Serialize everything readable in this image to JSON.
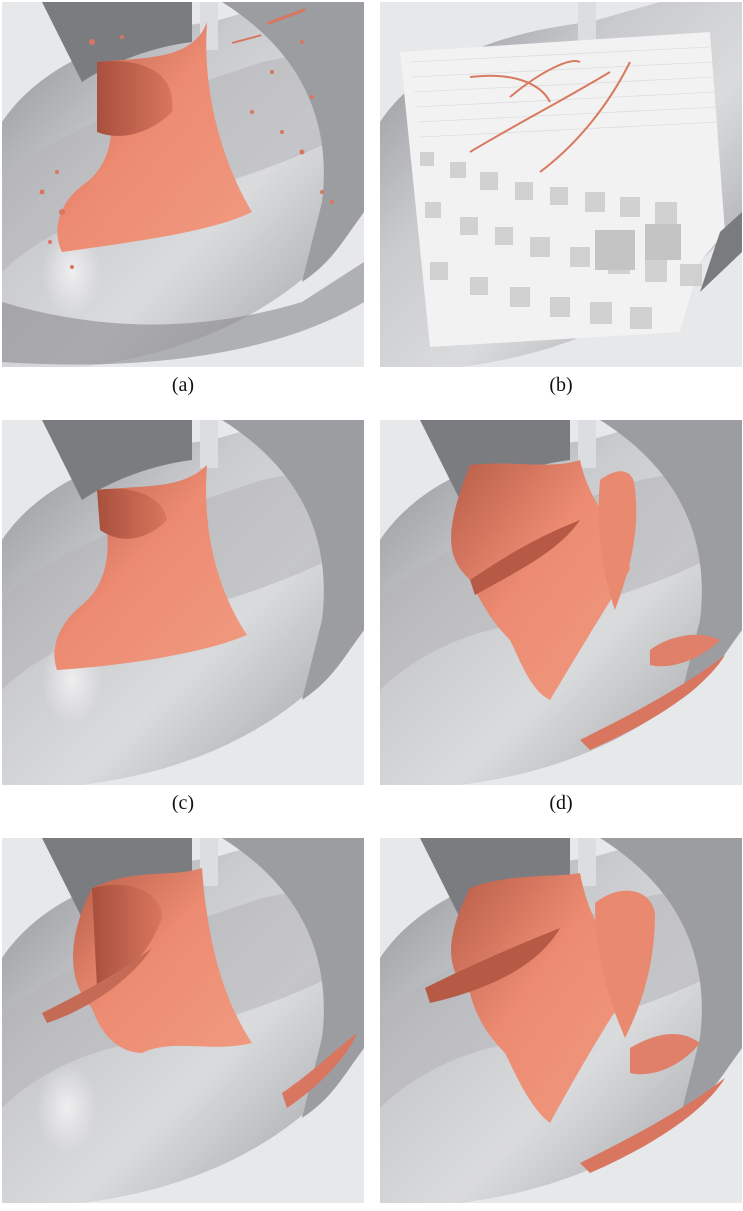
{
  "figure": {
    "captions": {
      "a": "(a)",
      "b": "(b)",
      "c": "(c)",
      "d": "(d)"
    },
    "colors": {
      "background": "#e7e8ea",
      "pipe_light": "#c8c9cc",
      "pipe_dark": "#6f7074",
      "isosurface": "#e8806a",
      "isosurface_shade": "#b65a45",
      "voxel_face": "#f4f4f4",
      "voxel_shadow": "#bfbfbf"
    },
    "panels": [
      {
        "id": "a",
        "content": "isosurface-scattered-fragments"
      },
      {
        "id": "b",
        "content": "octree-voxel-grid"
      },
      {
        "id": "c",
        "content": "isosurface-smooth"
      },
      {
        "id": "d",
        "content": "isosurface-large-sheets"
      },
      {
        "id": "e",
        "content": "isosurface-with-detail"
      },
      {
        "id": "f",
        "content": "isosurface-combined"
      }
    ]
  }
}
